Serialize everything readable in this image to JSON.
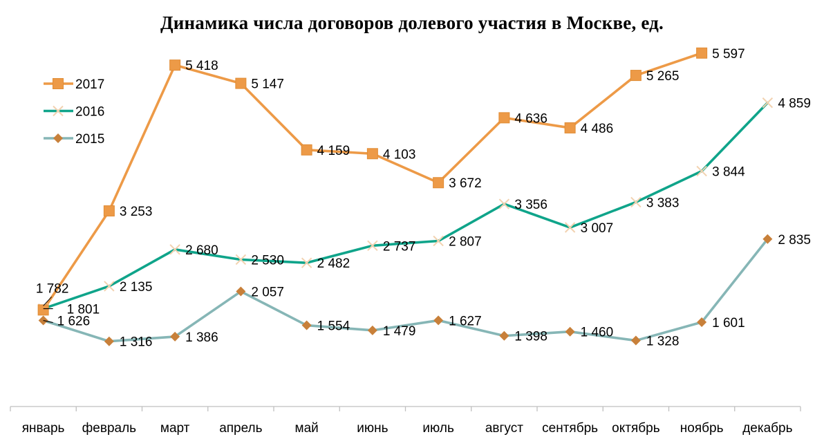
{
  "chart_data": {
    "type": "line",
    "title": "Динамика числа договоров долевого участия в Москве, ед.",
    "xlabel": "",
    "ylabel": "",
    "ylim": [
      0,
      6000
    ],
    "grid": false,
    "legend_position": "top-left",
    "categories": [
      "январь",
      "февраль",
      "март",
      "апрель",
      "май",
      "июнь",
      "июль",
      "август",
      "сентябрь",
      "октябрь",
      "ноябрь",
      "декабрь"
    ],
    "series": [
      {
        "name": "2017",
        "color": "#ED9A47",
        "marker": "square",
        "values": [
          1782,
          3253,
          5418,
          5147,
          4159,
          4103,
          3672,
          4636,
          4486,
          5265,
          5597,
          null
        ],
        "labels": [
          "1 782",
          "3 253",
          "5 418",
          "5 147",
          "4 159",
          "4 103",
          "3 672",
          "4 636",
          "4 486",
          "5 265",
          "5 597",
          null
        ]
      },
      {
        "name": "2016",
        "color": "#0FA48A",
        "marker": "x",
        "values": [
          1801,
          2135,
          2680,
          2530,
          2482,
          2737,
          2807,
          3356,
          3007,
          3383,
          3844,
          4859
        ],
        "labels": [
          "1 801",
          "2 135",
          "2 680",
          "2 530",
          "2 482",
          "2 737",
          "2 807",
          "3 356",
          "3 007",
          "3 383",
          "3 844",
          "4 859"
        ]
      },
      {
        "name": "2015",
        "color": "#86B6B6",
        "marker": "diamond",
        "marker_color": "#C8803A",
        "values": [
          1626,
          1316,
          1386,
          2057,
          1554,
          1479,
          1627,
          1398,
          1460,
          1328,
          1601,
          2835
        ],
        "labels": [
          "1 626",
          "1 316",
          "1 386",
          "2 057",
          "1 554",
          "1 479",
          "1 627",
          "1 398",
          "1 460",
          "1 328",
          "1 601",
          "2 835"
        ]
      }
    ]
  }
}
